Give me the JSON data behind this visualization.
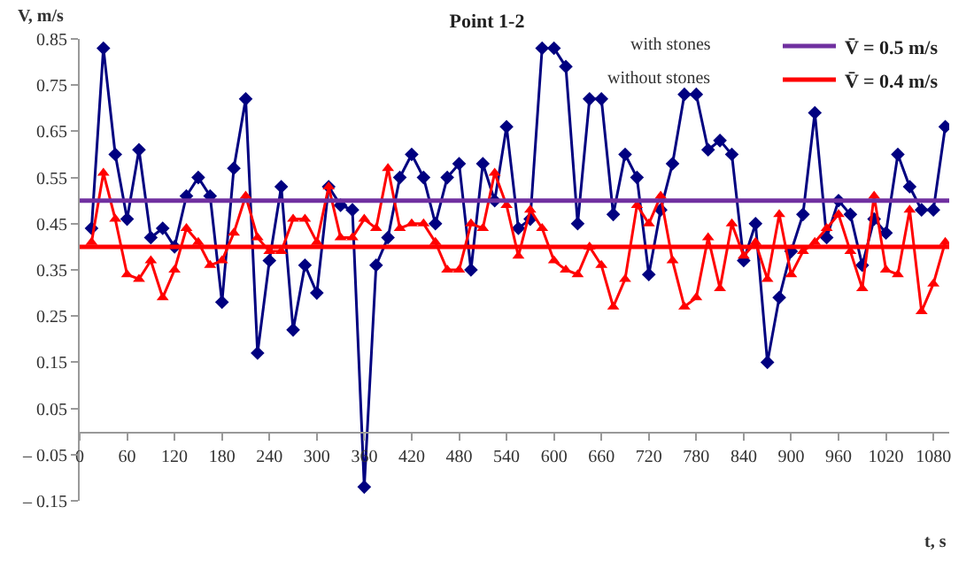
{
  "chart_data": {
    "type": "line",
    "title": "Point 1-2",
    "xlabel": "t, s",
    "ylabel": "V, m/s",
    "x": [
      15,
      30,
      45,
      60,
      75,
      90,
      105,
      120,
      135,
      150,
      165,
      180,
      195,
      210,
      225,
      240,
      255,
      270,
      285,
      300,
      315,
      330,
      345,
      360,
      375,
      390,
      405,
      420,
      435,
      450,
      465,
      480,
      495,
      510,
      525,
      540,
      555,
      570,
      585,
      600,
      615,
      630,
      645,
      660,
      675,
      690,
      705,
      720,
      735,
      750,
      765,
      780,
      795,
      810,
      825,
      840,
      855,
      870,
      885,
      900,
      915,
      930,
      945,
      960,
      975,
      990,
      1005,
      1020,
      1035,
      1050,
      1065,
      1080,
      1095
    ],
    "series": [
      {
        "color": "#000080",
        "marker": "diamond",
        "values": [
          0.44,
          0.83,
          0.6,
          0.46,
          0.61,
          0.42,
          0.44,
          0.4,
          0.51,
          0.55,
          0.51,
          0.28,
          0.57,
          0.72,
          0.17,
          0.37,
          0.53,
          0.22,
          0.36,
          0.3,
          0.53,
          0.49,
          0.48,
          -0.12,
          0.36,
          0.42,
          0.55,
          0.6,
          0.55,
          0.45,
          0.55,
          0.58,
          0.35,
          0.58,
          0.5,
          0.66,
          0.44,
          0.46,
          0.83,
          0.83,
          0.79,
          0.45,
          0.72,
          0.72,
          0.47,
          0.6,
          0.55,
          0.34,
          0.48,
          0.58,
          0.73,
          0.73,
          0.61,
          0.63,
          0.6,
          0.37,
          0.45,
          0.15,
          0.29,
          0.39,
          0.47,
          0.69,
          0.42,
          0.5,
          0.47,
          0.36,
          0.46,
          0.43,
          0.6,
          0.53,
          0.48,
          0.48,
          0.66
        ]
      },
      {
        "color": "#ff0000",
        "marker": "triangle",
        "values": [
          0.41,
          0.56,
          0.46,
          0.34,
          0.33,
          0.37,
          0.29,
          0.35,
          0.44,
          0.41,
          0.36,
          0.37,
          0.43,
          0.51,
          0.42,
          0.39,
          0.39,
          0.46,
          0.46,
          0.41,
          0.53,
          0.42,
          0.42,
          0.46,
          0.44,
          0.57,
          0.44,
          0.45,
          0.45,
          0.41,
          0.35,
          0.35,
          0.45,
          0.44,
          0.56,
          0.49,
          0.38,
          0.48,
          0.44,
          0.37,
          0.35,
          0.34,
          0.4,
          0.36,
          0.27,
          0.33,
          0.49,
          0.45,
          0.51,
          0.37,
          0.27,
          0.29,
          0.42,
          0.31,
          0.45,
          0.38,
          0.41,
          0.33,
          0.47,
          0.34,
          0.39,
          0.41,
          0.44,
          0.47,
          0.39,
          0.31,
          0.51,
          0.35,
          0.34,
          0.48,
          0.26,
          0.32,
          0.41
        ]
      }
    ],
    "ref_lines": [
      {
        "axis": "y",
        "value": 0.5,
        "label": "V̄ = 0.5 m/s",
        "color": "#7030a0"
      },
      {
        "axis": "y",
        "value": 0.4,
        "label": "V̄ = 0.4 m/s",
        "color": "#ff0000"
      }
    ],
    "annotations": [
      "with stones",
      "without stones"
    ],
    "xlim": [
      0,
      1100
    ],
    "xticks": [
      0,
      60,
      120,
      180,
      240,
      300,
      360,
      420,
      480,
      540,
      600,
      660,
      720,
      780,
      840,
      900,
      960,
      1020,
      1080
    ],
    "ylim": [
      -0.15,
      0.85
    ],
    "yticks": [
      {
        "value": -0.15,
        "label": "– 0.15"
      },
      {
        "value": -0.05,
        "label": "– 0.05"
      },
      0.05,
      0.15,
      0.25,
      0.35,
      0.45,
      0.55,
      0.65,
      0.75,
      0.85
    ],
    "legend": "top right",
    "line_style": "solid"
  }
}
